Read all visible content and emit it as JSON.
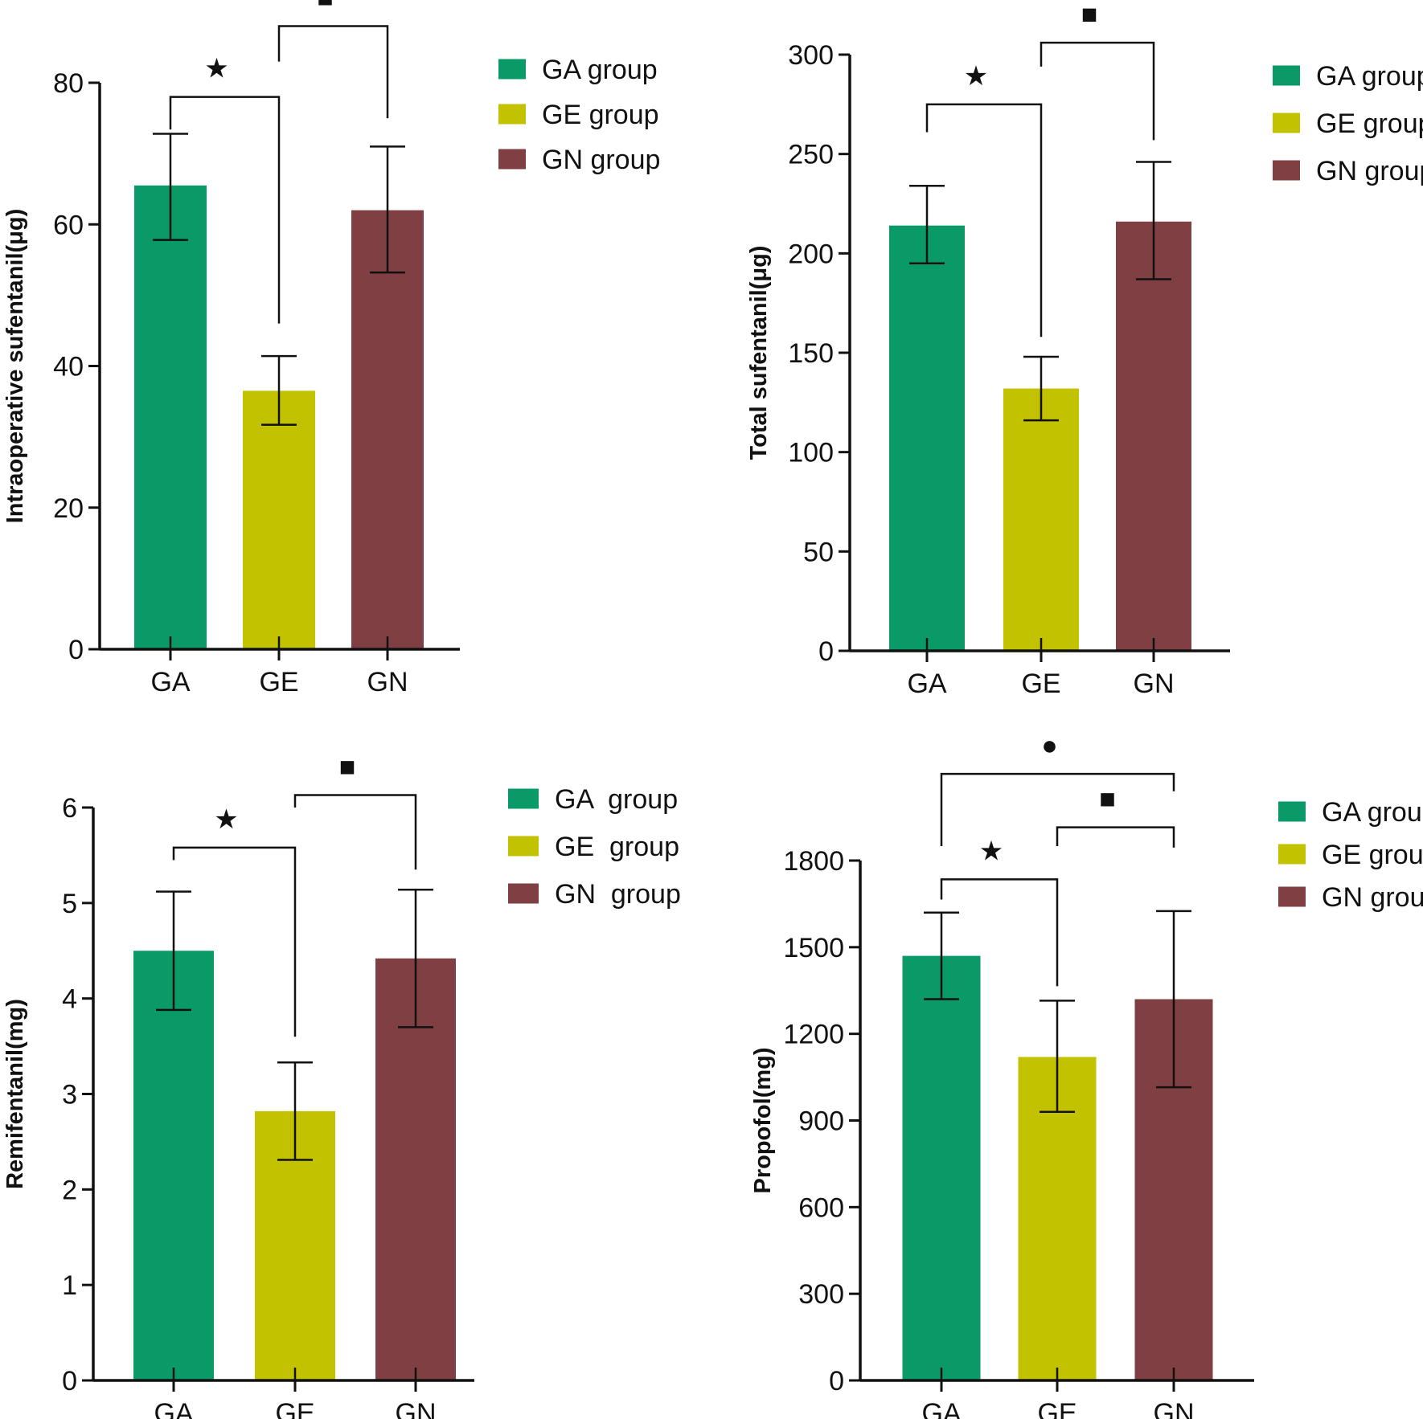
{
  "colors": {
    "GA": "#0a9a68",
    "GE": "#c2c201",
    "GN": "#803f42",
    "axis": "#111111"
  },
  "chart_data": [
    {
      "type": "bar",
      "ylabel": "Intraoperative sufentanil(μg)",
      "categories": [
        "GA",
        "GE",
        "GN"
      ],
      "values": [
        65.5,
        36.5,
        62
      ],
      "errors": [
        [
          57.8,
          72.8
        ],
        [
          31.7,
          41.4
        ],
        [
          53.2,
          71
        ]
      ],
      "ylim": [
        0,
        80
      ],
      "yticks": [
        "0",
        "20",
        "40",
        "60",
        "80"
      ],
      "ytick_values": [
        0,
        20,
        40,
        60,
        80
      ],
      "legend": [
        "GA group",
        "GE group",
        "GN group"
      ],
      "brackets": [
        {
          "from": "GA",
          "to": "GE",
          "level": 78,
          "leftDrop": 73.4,
          "rightDrop": 46,
          "symbol": "★"
        },
        {
          "from": "GE",
          "to": "GN",
          "level": 88,
          "leftDrop": 83,
          "rightDrop": 75,
          "symbol": "■"
        }
      ]
    },
    {
      "type": "bar",
      "ylabel": "Total sufentanil(μg)",
      "categories": [
        "GA",
        "GE",
        "GN"
      ],
      "values": [
        214,
        132,
        216
      ],
      "errors": [
        [
          195,
          234
        ],
        [
          116,
          148
        ],
        [
          187,
          246
        ]
      ],
      "ylim": [
        0,
        300
      ],
      "yticks": [
        "0",
        "50",
        "100",
        "150",
        "200",
        "250",
        "300"
      ],
      "ytick_values": [
        0,
        50,
        100,
        150,
        200,
        250,
        300
      ],
      "legend": [
        "GA group",
        "GE group",
        "GN group"
      ],
      "brackets": [
        {
          "from": "GA",
          "to": "GE",
          "level": 275,
          "leftDrop": 261,
          "rightDrop": 158,
          "symbol": "★"
        },
        {
          "from": "GE",
          "to": "GN",
          "level": 306,
          "leftDrop": 294,
          "rightDrop": 257,
          "symbol": "■"
        }
      ]
    },
    {
      "type": "bar",
      "ylabel": "Remifentanil(mg)",
      "categories": [
        "GA",
        "GE",
        "GN"
      ],
      "values": [
        4.5,
        2.82,
        4.42
      ],
      "errors": [
        [
          3.88,
          5.12
        ],
        [
          2.31,
          3.33
        ],
        [
          3.7,
          5.14
        ]
      ],
      "ylim": [
        0,
        6
      ],
      "yticks": [
        "0",
        "1",
        "2",
        "3",
        "4",
        "5",
        "6"
      ],
      "ytick_values": [
        0,
        1,
        2,
        3,
        4,
        5,
        6
      ],
      "legend": [
        "GA  group",
        "GE  group",
        "GN  group"
      ],
      "brackets": [
        {
          "from": "GA",
          "to": "GE",
          "level": 5.58,
          "leftDrop": 5.45,
          "rightDrop": 3.6,
          "symbol": "★"
        },
        {
          "from": "GE",
          "to": "GN",
          "level": 6.13,
          "leftDrop": 6.0,
          "rightDrop": 5.35,
          "symbol": "■"
        }
      ]
    },
    {
      "type": "bar",
      "ylabel": "Propofol(mg)",
      "categories": [
        "GA",
        "GE",
        "GN"
      ],
      "values": [
        1470,
        1120,
        1320
      ],
      "errors": [
        [
          1320,
          1620
        ],
        [
          930,
          1315
        ],
        [
          1015,
          1625
        ]
      ],
      "ylim": [
        0,
        1800
      ],
      "yticks": [
        "0",
        "300",
        "600",
        "900",
        "1200",
        "1500",
        "1800"
      ],
      "ytick_values": [
        0,
        300,
        600,
        900,
        1200,
        1500,
        1800
      ],
      "legend": [
        "GA group",
        "GE group",
        "GN group"
      ],
      "brackets": [
        {
          "from": "GA",
          "to": "GE",
          "level": 1735,
          "leftDrop": 1665,
          "rightDrop": 1365,
          "symbol": "★"
        },
        {
          "from": "GE",
          "to": "GN",
          "level": 1915,
          "leftDrop": 1850,
          "rightDrop": 1845,
          "symbol": "■"
        },
        {
          "from": "GA",
          "to": "GN",
          "level": 2100,
          "leftDrop": 1850,
          "rightDrop": 2040,
          "symbol": "●"
        }
      ]
    }
  ]
}
